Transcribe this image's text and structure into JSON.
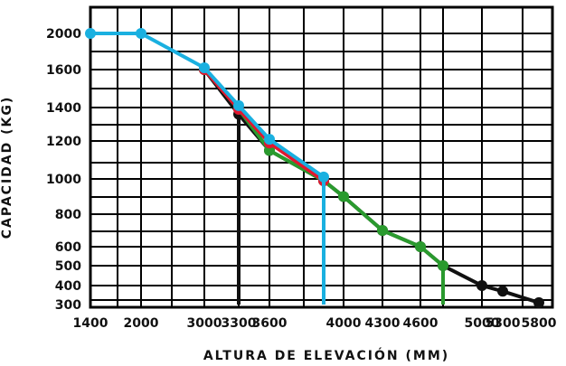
{
  "chart_data": {
    "type": "line",
    "xlabel": "ALTURA DE ELEVACIÓN (MM)",
    "ylabel": "CAPACIDAD (KG)",
    "x_ticks": [
      "1400",
      "2000",
      "3000",
      "3300",
      "3600",
      "4000",
      "4300",
      "4600",
      "5000",
      "5300",
      "5800"
    ],
    "y_ticks": [
      "2000",
      "1600",
      "1400",
      "1200",
      "1000",
      "800",
      "600",
      "500",
      "400",
      "300"
    ],
    "grid": true,
    "legend": "none",
    "series": [
      {
        "color": "#1ab0e0",
        "points": [
          [
            "1400",
            "2000"
          ],
          [
            "2000",
            "2000"
          ],
          [
            "3000",
            "1620"
          ],
          [
            "3300",
            "1410"
          ],
          [
            "3600",
            "1210"
          ],
          [
            "3600+",
            "1010"
          ]
        ],
        "drop_to": "300"
      },
      {
        "color": "#e2162f",
        "points": [
          [
            "3000",
            "1600"
          ],
          [
            "3300",
            "1390"
          ],
          [
            "3600",
            "1190"
          ],
          [
            "3600+",
            "990"
          ]
        ],
        "drop_to": "300"
      },
      {
        "color": "#111111",
        "points": [
          [
            "3000",
            "1600"
          ],
          [
            "3300",
            "1360"
          ],
          [
            "3600",
            "1150"
          ],
          [
            "3600+",
            "990"
          ],
          [
            "4000",
            "900"
          ],
          [
            "4300",
            "700"
          ],
          [
            "4600",
            "600"
          ],
          [
            "4600+",
            "500"
          ],
          [
            "5000",
            "400"
          ],
          [
            "5300",
            "370"
          ],
          [
            "5800",
            "310"
          ]
        ],
        "drop_at": [
          "3300"
        ],
        "drop_to": "300"
      },
      {
        "color": "#2a9a2e",
        "points": [
          [
            "3000",
            "1600"
          ],
          [
            "3300",
            "1390"
          ],
          [
            "3600",
            "1150"
          ],
          [
            "3600+",
            "990"
          ],
          [
            "4000",
            "900"
          ],
          [
            "4300",
            "700"
          ],
          [
            "4600",
            "600"
          ],
          [
            "4600+",
            "500"
          ]
        ],
        "drop_to": "300"
      }
    ]
  }
}
